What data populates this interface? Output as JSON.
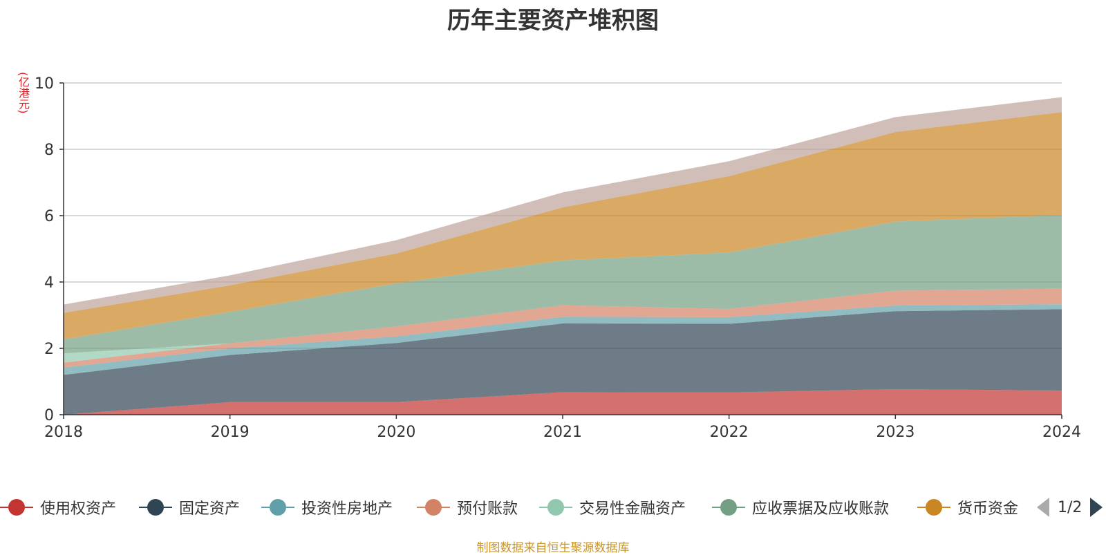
{
  "chart_data": {
    "type": "area",
    "stacked": true,
    "title": "历年主要资产堆积图",
    "ylabel": "(亿港元)",
    "xlabel": "",
    "categories": [
      "2018",
      "2019",
      "2020",
      "2021",
      "2022",
      "2023",
      "2024"
    ],
    "ylim": [
      0,
      10
    ],
    "yticks": [
      0,
      2,
      4,
      6,
      8,
      10
    ],
    "grid": true,
    "legend_position": "bottom",
    "series": [
      {
        "name": "使用权资产",
        "color": "#c23531",
        "values": [
          0.0,
          0.38,
          0.38,
          0.68,
          0.67,
          0.77,
          0.73
        ]
      },
      {
        "name": "固定资产",
        "color": "#2f4554",
        "values": [
          1.2,
          1.42,
          1.78,
          2.07,
          2.07,
          2.35,
          2.45
        ]
      },
      {
        "name": "投资性房地产",
        "color": "#61a0a8",
        "values": [
          0.22,
          0.2,
          0.2,
          0.2,
          0.2,
          0.17,
          0.15
        ]
      },
      {
        "name": "预付账款",
        "color": "#d48265",
        "values": [
          0.15,
          0.15,
          0.3,
          0.35,
          0.25,
          0.45,
          0.47
        ]
      },
      {
        "name": "交易性金融资产",
        "color": "#91c7ae",
        "values": [
          0.28,
          0.0,
          0.0,
          0.0,
          0.0,
          0.0,
          0.0
        ]
      },
      {
        "name": "应收票据及应收账款",
        "color": "#749f83",
        "values": [
          0.42,
          0.95,
          1.3,
          1.35,
          1.7,
          2.08,
          2.22
        ]
      },
      {
        "name": "货币资金",
        "color": "#ca8622",
        "values": [
          0.8,
          0.8,
          0.9,
          1.6,
          2.3,
          2.7,
          3.1
        ]
      },
      {
        "name": "",
        "color": "#bda29a",
        "values": [
          0.25,
          0.3,
          0.4,
          0.45,
          0.45,
          0.45,
          0.45
        ]
      }
    ]
  },
  "legend": {
    "page_text": "1/2"
  },
  "footer": {
    "source": "制图数据来自恒生聚源数据库"
  }
}
